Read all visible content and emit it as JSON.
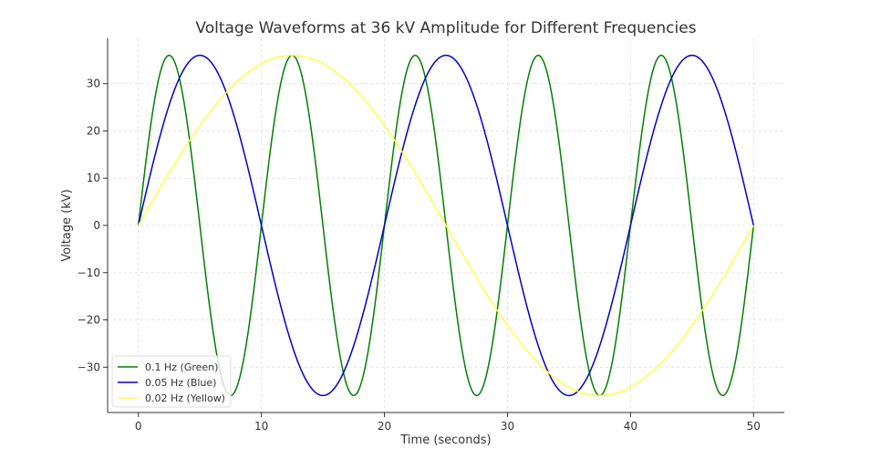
{
  "chart_data": {
    "type": "line",
    "title": "Voltage Waveforms at 36 kV Amplitude for Different Frequencies",
    "xlabel": "Time (seconds)",
    "ylabel": "Voltage (kV)",
    "xlim": [
      -2.5,
      52.5
    ],
    "ylim": [
      -39.6,
      39.6
    ],
    "xticks": [
      0,
      10,
      20,
      30,
      40,
      50
    ],
    "yticks": [
      -30,
      -20,
      -10,
      0,
      10,
      20,
      30
    ],
    "grid": true,
    "legend_placement": "lower-left",
    "amplitude": 36,
    "series": [
      {
        "name": "0.1 Hz (Green)",
        "frequency": 0.1,
        "color": "#008000"
      },
      {
        "name": "0.05 Hz (Blue)",
        "frequency": 0.05,
        "color": "#0000cc"
      },
      {
        "name": "0.02 Hz (Yellow)",
        "frequency": 0.02,
        "color": "#ffff44"
      }
    ],
    "x_range": [
      0,
      50
    ]
  }
}
